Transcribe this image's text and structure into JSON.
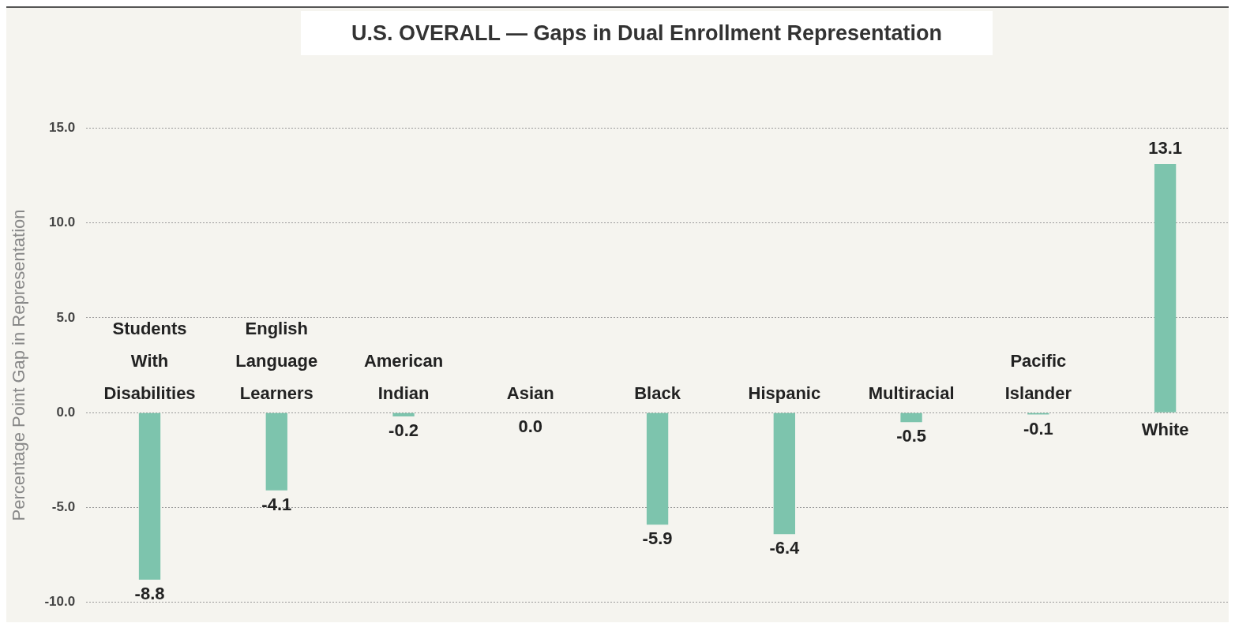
{
  "chart_data": {
    "type": "bar",
    "title": "U.S. OVERALL — Gaps in Dual Enrollment Representation",
    "ylabel": "Percentage Point Gap in Representation",
    "categories": [
      "Students With Disabilities",
      "English Language Learners",
      "American Indian",
      "Asian",
      "Black",
      "Hispanic",
      "Multiracial",
      "Pacific Islander",
      "White"
    ],
    "values": [
      -8.8,
      -4.1,
      -0.2,
      0.0,
      -5.9,
      -6.4,
      -0.5,
      -0.1,
      13.1
    ],
    "value_labels": [
      "-8.8",
      "-4.1",
      "-0.2",
      "0.0",
      "-5.9",
      "-6.4",
      "-0.5",
      "-0.1",
      "13.1"
    ],
    "color": "#7dc4ad",
    "ylim": [
      -10,
      15
    ],
    "yticks": [
      {
        "value": -10,
        "label": "-10.0"
      },
      {
        "value": -5,
        "label": "-5.0"
      },
      {
        "value": 0,
        "label": "0.0"
      },
      {
        "value": 5,
        "label": "5.0"
      },
      {
        "value": 10,
        "label": "10.0"
      },
      {
        "value": 15,
        "label": "15.0"
      }
    ],
    "grid": "y"
  }
}
